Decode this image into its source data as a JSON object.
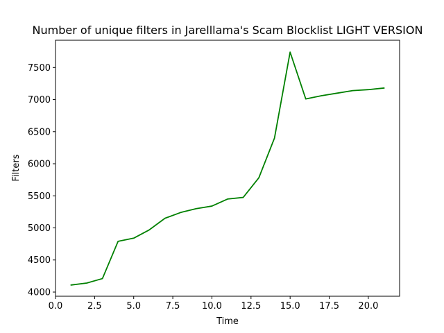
{
  "chart_data": {
    "type": "line",
    "title": "Number of unique filters in Jarelllama's Scam Blocklist LIGHT VERSION",
    "xlabel": "Time",
    "ylabel": "Filters",
    "xlim": [
      0,
      22
    ],
    "ylim": [
      3935,
      7925
    ],
    "xticks": [
      0,
      2.5,
      5,
      7.5,
      10,
      12.5,
      15,
      17.5,
      20
    ],
    "xtick_labels": [
      "0.0",
      "2.5",
      "5.0",
      "7.5",
      "10.0",
      "12.5",
      "15.0",
      "17.5",
      "20.0"
    ],
    "yticks": [
      4000,
      4500,
      5000,
      5500,
      6000,
      6500,
      7000,
      7500
    ],
    "ytick_labels": [
      "4000",
      "4500",
      "5000",
      "5500",
      "6000",
      "6500",
      "7000",
      "7500"
    ],
    "grid": false,
    "legend": "none",
    "series": [
      {
        "color": "#008000",
        "x": [
          1,
          2,
          3,
          4,
          5,
          6,
          7,
          8,
          9,
          10,
          11,
          12,
          13,
          14,
          15,
          16,
          17,
          18,
          19,
          20,
          21
        ],
        "y": [
          4110,
          4140,
          4210,
          4790,
          4840,
          4970,
          5150,
          5240,
          5300,
          5340,
          5450,
          5475,
          5780,
          6400,
          7740,
          7010,
          7060,
          7100,
          7140,
          7155,
          7180
        ]
      }
    ]
  }
}
